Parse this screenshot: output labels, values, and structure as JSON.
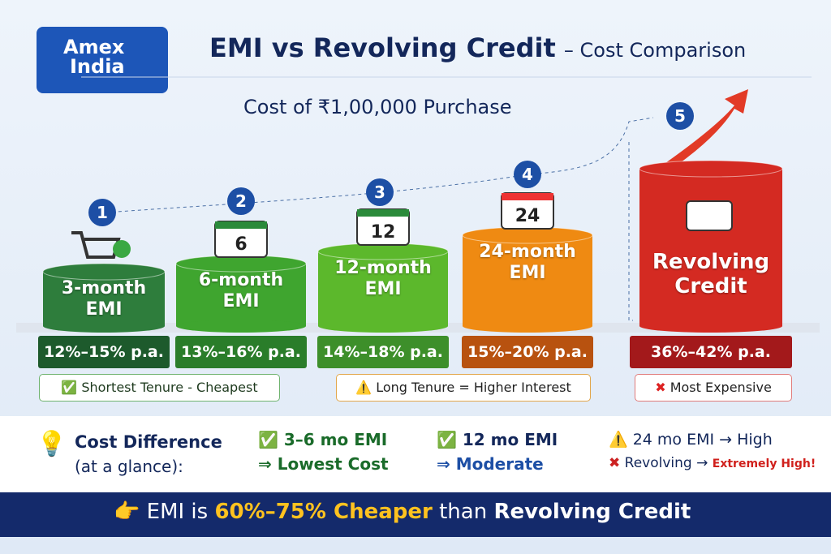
{
  "header": {
    "logo": [
      "Amex",
      "India"
    ],
    "title": "EMI vs Revolving Credit",
    "title_suffix": "– Cost Comparison",
    "subtitle": "Cost of ₹1,00,000 Purchase"
  },
  "options": [
    {
      "step": "1",
      "label": [
        "3-month",
        "EMI"
      ],
      "rate": "12%–15% p.a.",
      "color": "#2e7d3c",
      "rate_color": "#1d5a2c"
    },
    {
      "step": "2",
      "label": [
        "6-month",
        "EMI"
      ],
      "icon_text": "6",
      "rate": "13%–16% p.a.",
      "color": "#3fa52f",
      "rate_color": "#2a7d2a"
    },
    {
      "step": "3",
      "label": [
        "12-month",
        "EMI"
      ],
      "icon_text": "12",
      "rate": "14%–18% p.a.",
      "color": "#5cb82c",
      "rate_color": "#3d8f2a"
    },
    {
      "step": "4",
      "label": [
        "24-month",
        "EMI"
      ],
      "icon_text": "24",
      "rate": "15%–20% p.a.",
      "color": "#ef8a12",
      "rate_color": "#b8520f"
    },
    {
      "step": "5",
      "label": [
        "Revolving",
        "Credit"
      ],
      "rate": "36%–42% p.a.",
      "color": "#d42a22",
      "rate_color": "#a3191b"
    }
  ],
  "notes": [
    "Shortest Tenure - Cheapest",
    "Long Tenure = Higher Interest",
    "Most Expensive"
  ],
  "summary": {
    "heading": "Cost Difference",
    "subheading": "(at a glance):",
    "items": [
      [
        "3–6 mo EMI",
        "⇒ Lowest Cost"
      ],
      [
        "12 mo EMI",
        "⇒ Moderate"
      ],
      [
        "24 mo EMI → High",
        "Revolving →",
        "Extremely High!"
      ]
    ]
  },
  "banner": [
    "EMI is",
    "60%–75% Cheaper",
    "than",
    "Revolving Credit"
  ]
}
